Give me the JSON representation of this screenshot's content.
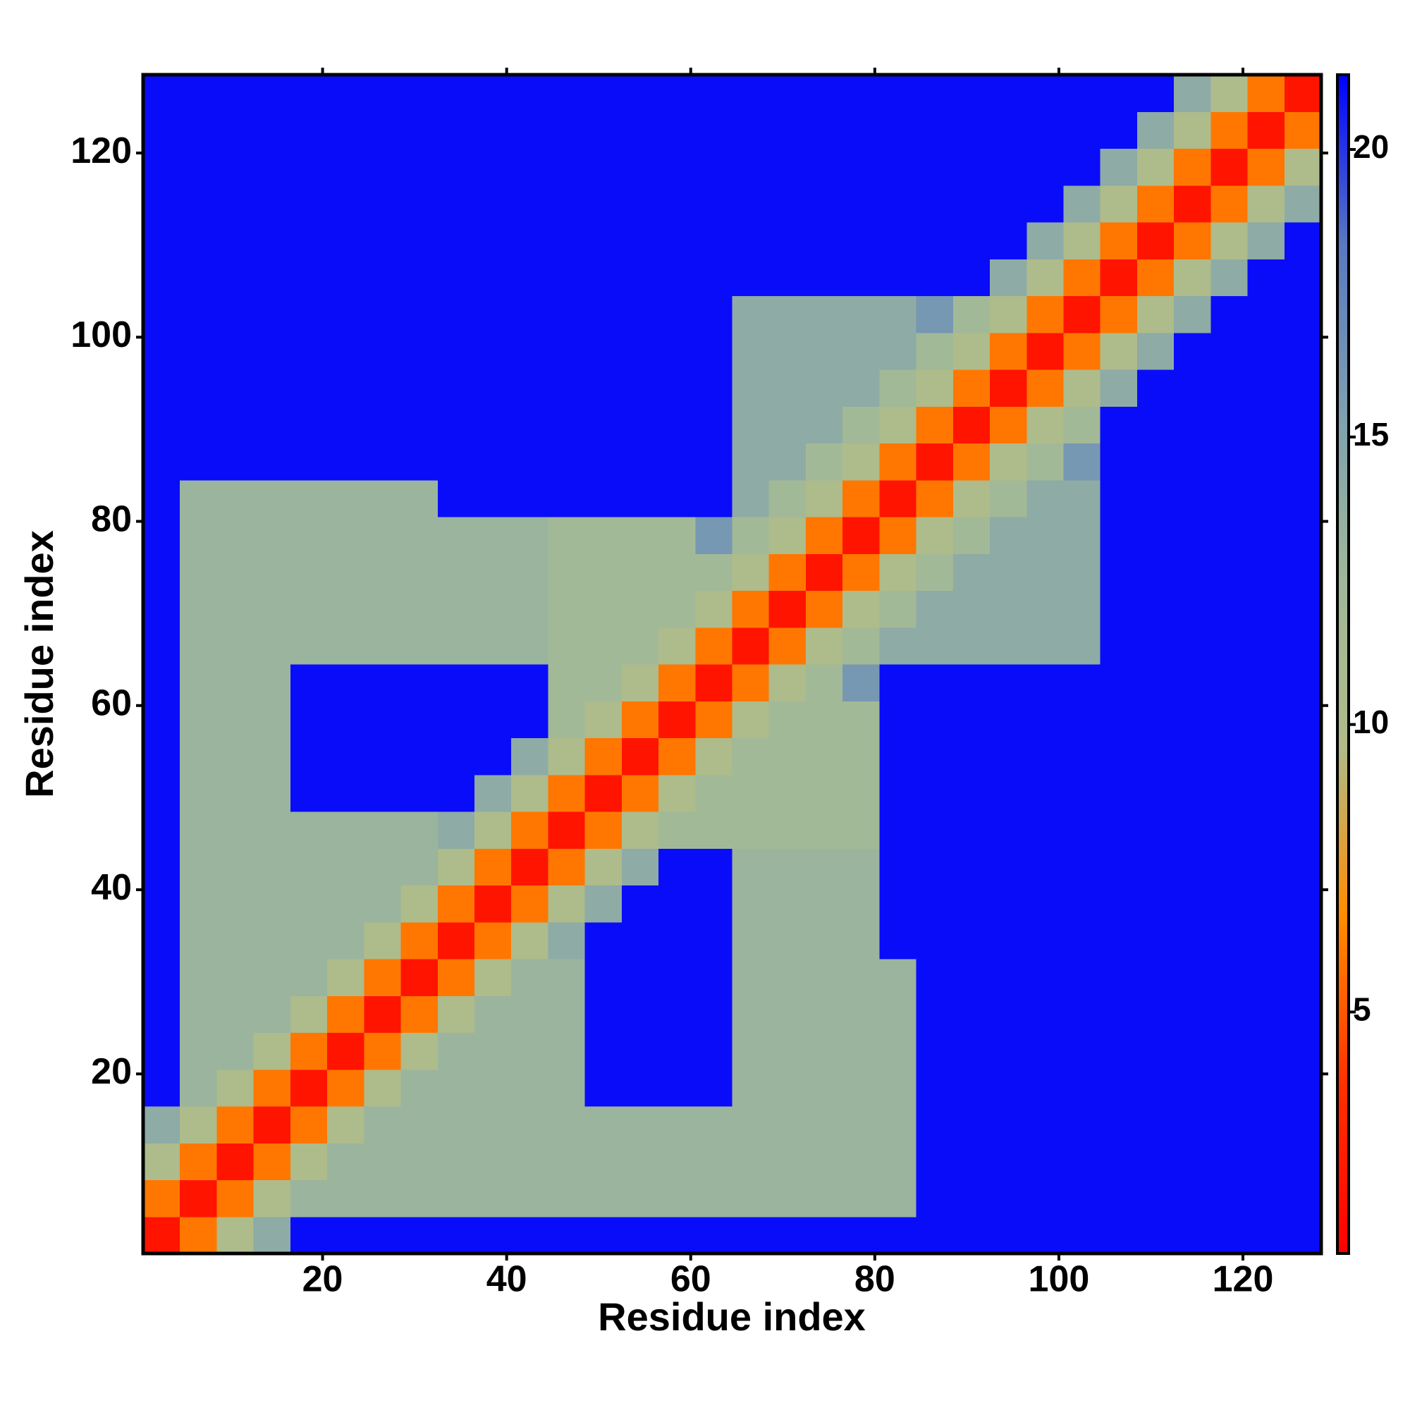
{
  "chart_data": {
    "type": "heatmap",
    "xlabel": "Residue index",
    "ylabel": "Residue index",
    "x": [
      2.5,
      6.5,
      10.5,
      14.5,
      18.5,
      22.5,
      26.5,
      30.5,
      34.5,
      38.5,
      42.5,
      46.5,
      50.5,
      54.5,
      58.5,
      62.5,
      66.5,
      70.5,
      74.5,
      78.5,
      82.5,
      86.5,
      90.5,
      94.5,
      98.5,
      102.5,
      106.5,
      110.5,
      114.5,
      118.5,
      122.5,
      126.5
    ],
    "y": [
      2.5,
      6.5,
      10.5,
      14.5,
      18.5,
      22.5,
      26.5,
      30.5,
      34.5,
      38.5,
      42.5,
      46.5,
      50.5,
      54.5,
      58.5,
      62.5,
      66.5,
      70.5,
      74.5,
      78.5,
      82.5,
      86.5,
      90.5,
      94.5,
      98.5,
      102.5,
      106.5,
      110.5,
      114.5,
      118.5,
      122.5,
      126.5
    ],
    "z": [
      [
        2,
        6,
        10,
        14,
        21,
        21,
        21,
        21,
        21,
        21,
        21,
        21,
        21,
        21,
        21,
        21,
        21,
        21,
        21,
        21,
        21,
        21,
        21,
        21,
        21,
        21,
        21,
        21,
        21,
        21,
        21,
        21
      ],
      [
        6,
        2,
        6,
        10,
        13,
        13,
        13,
        13,
        13,
        13,
        13,
        13,
        13,
        13,
        13,
        13,
        13,
        13,
        13,
        13,
        13,
        21,
        21,
        21,
        21,
        21,
        21,
        21,
        21,
        21,
        21,
        21
      ],
      [
        10,
        6,
        2,
        6,
        10,
        13,
        13,
        13,
        13,
        13,
        13,
        13,
        13,
        13,
        13,
        13,
        13,
        13,
        13,
        13,
        13,
        21,
        21,
        21,
        21,
        21,
        21,
        21,
        21,
        21,
        21,
        21
      ],
      [
        14,
        10,
        6,
        2,
        6,
        10,
        13,
        13,
        13,
        13,
        13,
        13,
        13,
        13,
        13,
        13,
        13,
        13,
        13,
        13,
        13,
        21,
        21,
        21,
        21,
        21,
        21,
        21,
        21,
        21,
        21,
        21
      ],
      [
        21,
        13,
        10,
        6,
        2,
        6,
        10,
        13,
        13,
        13,
        13,
        13,
        21,
        21,
        21,
        21,
        13,
        13,
        13,
        13,
        13,
        21,
        21,
        21,
        21,
        21,
        21,
        21,
        21,
        21,
        21,
        21
      ],
      [
        21,
        13,
        13,
        10,
        6,
        2,
        6,
        10,
        13,
        13,
        13,
        13,
        21,
        21,
        21,
        21,
        13,
        13,
        13,
        13,
        13,
        21,
        21,
        21,
        21,
        21,
        21,
        21,
        21,
        21,
        21,
        21
      ],
      [
        21,
        13,
        13,
        13,
        10,
        6,
        2,
        6,
        10,
        13,
        13,
        13,
        21,
        21,
        21,
        21,
        13,
        13,
        13,
        13,
        13,
        21,
        21,
        21,
        21,
        21,
        21,
        21,
        21,
        21,
        21,
        21
      ],
      [
        21,
        13,
        13,
        13,
        13,
        10,
        6,
        2,
        6,
        10,
        13,
        13,
        21,
        21,
        21,
        21,
        13,
        13,
        13,
        13,
        13,
        21,
        21,
        21,
        21,
        21,
        21,
        21,
        21,
        21,
        21,
        21
      ],
      [
        21,
        13,
        13,
        13,
        13,
        13,
        10,
        6,
        2,
        6,
        10,
        14,
        21,
        21,
        21,
        21,
        13,
        13,
        13,
        13,
        21,
        21,
        21,
        21,
        21,
        21,
        21,
        21,
        21,
        21,
        21,
        21
      ],
      [
        21,
        13,
        13,
        13,
        13,
        13,
        13,
        10,
        6,
        2,
        6,
        10,
        14,
        21,
        21,
        21,
        13,
        13,
        13,
        13,
        21,
        21,
        21,
        21,
        21,
        21,
        21,
        21,
        21,
        21,
        21,
        21
      ],
      [
        21,
        13,
        13,
        13,
        13,
        13,
        13,
        13,
        10,
        6,
        2,
        6,
        10,
        14,
        21,
        21,
        13,
        13,
        13,
        13,
        21,
        21,
        21,
        21,
        21,
        21,
        21,
        21,
        21,
        21,
        21,
        21
      ],
      [
        21,
        13,
        13,
        13,
        13,
        13,
        13,
        13,
        14,
        10,
        6,
        2,
        6,
        10,
        12,
        12,
        12,
        12,
        12,
        12,
        21,
        21,
        21,
        21,
        21,
        21,
        21,
        21,
        21,
        21,
        21,
        21
      ],
      [
        21,
        13,
        13,
        13,
        21,
        21,
        21,
        21,
        21,
        14,
        10,
        6,
        2,
        6,
        10,
        12,
        12,
        12,
        12,
        12,
        21,
        21,
        21,
        21,
        21,
        21,
        21,
        21,
        21,
        21,
        21,
        21
      ],
      [
        21,
        13,
        13,
        13,
        21,
        21,
        21,
        21,
        21,
        21,
        14,
        10,
        6,
        2,
        6,
        10,
        12,
        12,
        12,
        12,
        21,
        21,
        21,
        21,
        21,
        21,
        21,
        21,
        21,
        21,
        21,
        21
      ],
      [
        21,
        13,
        13,
        13,
        21,
        21,
        21,
        21,
        21,
        21,
        21,
        12,
        10,
        6,
        2,
        6,
        10,
        12,
        12,
        12,
        21,
        21,
        21,
        21,
        21,
        21,
        21,
        21,
        21,
        21,
        21,
        21
      ],
      [
        21,
        13,
        13,
        13,
        21,
        21,
        21,
        21,
        21,
        21,
        21,
        12,
        12,
        10,
        6,
        2,
        6,
        10,
        12,
        16,
        21,
        21,
        21,
        21,
        21,
        21,
        21,
        21,
        21,
        21,
        21,
        21
      ],
      [
        21,
        13,
        13,
        13,
        13,
        13,
        13,
        13,
        13,
        13,
        13,
        12,
        12,
        12,
        10,
        6,
        2,
        6,
        10,
        12,
        14,
        14,
        14,
        14,
        14,
        14,
        21,
        21,
        21,
        21,
        21,
        21
      ],
      [
        21,
        13,
        13,
        13,
        13,
        13,
        13,
        13,
        13,
        13,
        13,
        12,
        12,
        12,
        12,
        10,
        6,
        2,
        6,
        10,
        12,
        14,
        14,
        14,
        14,
        14,
        21,
        21,
        21,
        21,
        21,
        21
      ],
      [
        21,
        13,
        13,
        13,
        13,
        13,
        13,
        13,
        13,
        13,
        13,
        12,
        12,
        12,
        12,
        12,
        10,
        6,
        2,
        6,
        10,
        12,
        14,
        14,
        14,
        14,
        21,
        21,
        21,
        21,
        21,
        21
      ],
      [
        21,
        13,
        13,
        13,
        13,
        13,
        13,
        13,
        13,
        13,
        13,
        12,
        12,
        12,
        12,
        16,
        12,
        10,
        6,
        2,
        6,
        10,
        12,
        14,
        14,
        14,
        21,
        21,
        21,
        21,
        21,
        21
      ],
      [
        21,
        13,
        13,
        13,
        13,
        13,
        13,
        13,
        21,
        21,
        21,
        21,
        21,
        21,
        21,
        21,
        14,
        12,
        10,
        6,
        2,
        6,
        10,
        12,
        14,
        14,
        21,
        21,
        21,
        21,
        21,
        21
      ],
      [
        21,
        21,
        21,
        21,
        21,
        21,
        21,
        21,
        21,
        21,
        21,
        21,
        21,
        21,
        21,
        21,
        14,
        14,
        12,
        10,
        6,
        2,
        6,
        10,
        12,
        16,
        21,
        21,
        21,
        21,
        21,
        21
      ],
      [
        21,
        21,
        21,
        21,
        21,
        21,
        21,
        21,
        21,
        21,
        21,
        21,
        21,
        21,
        21,
        21,
        14,
        14,
        14,
        12,
        10,
        6,
        2,
        6,
        10,
        12,
        21,
        21,
        21,
        21,
        21,
        21
      ],
      [
        21,
        21,
        21,
        21,
        21,
        21,
        21,
        21,
        21,
        21,
        21,
        21,
        21,
        21,
        21,
        21,
        14,
        14,
        14,
        14,
        12,
        10,
        6,
        2,
        6,
        10,
        14,
        21,
        21,
        21,
        21,
        21
      ],
      [
        21,
        21,
        21,
        21,
        21,
        21,
        21,
        21,
        21,
        21,
        21,
        21,
        21,
        21,
        21,
        21,
        14,
        14,
        14,
        14,
        14,
        12,
        10,
        6,
        2,
        6,
        10,
        14,
        21,
        21,
        21,
        21
      ],
      [
        21,
        21,
        21,
        21,
        21,
        21,
        21,
        21,
        21,
        21,
        21,
        21,
        21,
        21,
        21,
        21,
        14,
        14,
        14,
        14,
        14,
        16,
        12,
        10,
        6,
        2,
        6,
        10,
        14,
        21,
        21,
        21
      ],
      [
        21,
        21,
        21,
        21,
        21,
        21,
        21,
        21,
        21,
        21,
        21,
        21,
        21,
        21,
        21,
        21,
        21,
        21,
        21,
        21,
        21,
        21,
        21,
        14,
        10,
        6,
        2,
        6,
        10,
        14,
        21,
        21
      ],
      [
        21,
        21,
        21,
        21,
        21,
        21,
        21,
        21,
        21,
        21,
        21,
        21,
        21,
        21,
        21,
        21,
        21,
        21,
        21,
        21,
        21,
        21,
        21,
        21,
        14,
        10,
        6,
        2,
        6,
        10,
        14,
        21
      ],
      [
        21,
        21,
        21,
        21,
        21,
        21,
        21,
        21,
        21,
        21,
        21,
        21,
        21,
        21,
        21,
        21,
        21,
        21,
        21,
        21,
        21,
        21,
        21,
        21,
        21,
        14,
        10,
        6,
        2,
        6,
        10,
        14
      ],
      [
        21,
        21,
        21,
        21,
        21,
        21,
        21,
        21,
        21,
        21,
        21,
        21,
        21,
        21,
        21,
        21,
        21,
        21,
        21,
        21,
        21,
        21,
        21,
        21,
        21,
        21,
        14,
        10,
        6,
        2,
        6,
        10
      ],
      [
        21,
        21,
        21,
        21,
        21,
        21,
        21,
        21,
        21,
        21,
        21,
        21,
        21,
        21,
        21,
        21,
        21,
        21,
        21,
        21,
        21,
        21,
        21,
        21,
        21,
        21,
        21,
        14,
        10,
        6,
        2,
        6
      ],
      [
        21,
        21,
        21,
        21,
        21,
        21,
        21,
        21,
        21,
        21,
        21,
        21,
        21,
        21,
        21,
        21,
        21,
        21,
        21,
        21,
        21,
        21,
        21,
        21,
        21,
        21,
        21,
        21,
        14,
        10,
        6,
        2
      ]
    ],
    "xlim": [
      0.5,
      128.5
    ],
    "ylim": [
      0.5,
      128.5
    ],
    "xticks": [
      20,
      40,
      60,
      80,
      100,
      120
    ],
    "yticks": [
      20,
      40,
      60,
      80,
      100,
      120
    ],
    "colorbar": {
      "lim": [
        0.8,
        21.3
      ],
      "ticks": [
        5,
        10,
        15,
        20
      ],
      "colors": [
        "#ff0000",
        "#ff3000",
        "#ff8c00",
        "#b0bb88",
        "#9fb89a",
        "#7e9fb0",
        "#5878c0",
        "#0000ff"
      ]
    }
  }
}
